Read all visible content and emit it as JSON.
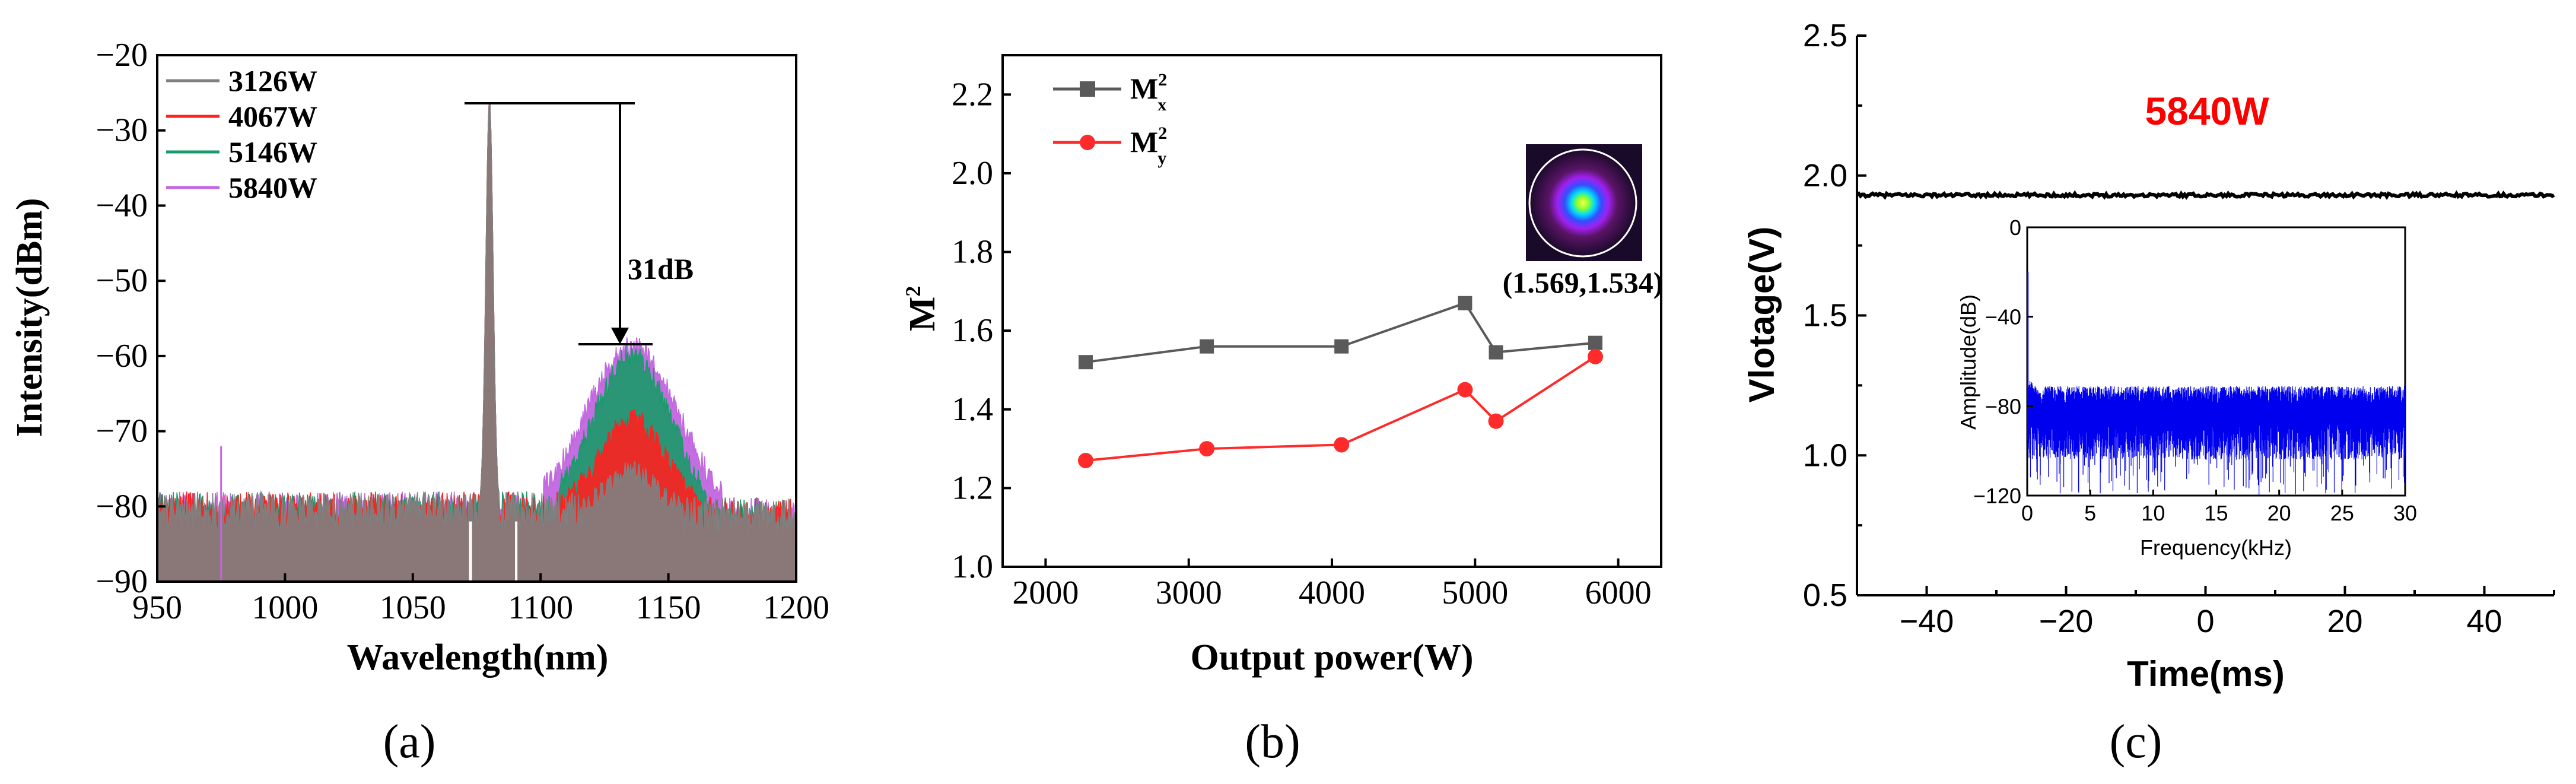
{
  "chart_data": [
    {
      "type": "line",
      "panel": "a",
      "caption": "(a)",
      "title": "",
      "xlabel": "Wavelength(nm)",
      "ylabel": "Intensity(dBm)",
      "xlim": [
        950,
        1200
      ],
      "ylim": [
        -90,
        -20
      ],
      "xticks": [
        "950",
        "1000",
        "1050",
        "1100",
        "1150",
        "1200"
      ],
      "yticks": [
        "−90",
        "−80",
        "−70",
        "−60",
        "−50",
        "−40",
        "−30",
        "−20"
      ],
      "legend_position": "top-left",
      "series": [
        {
          "name": "3126W",
          "color": "#808080",
          "noise_floor": -80.5,
          "raman_peak_nm": 1136,
          "raman_peak_dbm": -75,
          "signal_peak_nm": 1080,
          "signal_peak_dbm": -26
        },
        {
          "name": "4067W",
          "color": "#ff2020",
          "noise_floor": -80.5,
          "raman_peak_nm": 1136,
          "raman_peak_dbm": -68,
          "signal_peak_nm": 1080,
          "signal_peak_dbm": -26
        },
        {
          "name": "5146W",
          "color": "#1a9a6a",
          "noise_floor": -80.5,
          "raman_peak_nm": 1136,
          "raman_peak_dbm": -59.5,
          "signal_peak_nm": 1080,
          "signal_peak_dbm": -26
        },
        {
          "name": "5840W",
          "color": "#c266e0",
          "noise_floor": -80.5,
          "raman_peak_nm": 1136,
          "raman_peak_dbm": -58.5,
          "signal_peak_nm": 1080,
          "signal_peak_dbm": -26
        }
      ],
      "annotations": [
        {
          "text": "31dB",
          "from_dbm": -26,
          "to_dbm": -58,
          "at_nm": 1140
        }
      ]
    },
    {
      "type": "line",
      "panel": "b",
      "caption": "(b)",
      "title": "",
      "xlabel": "Output  power(W)",
      "ylabel": "M",
      "ylabel_sup": "2",
      "xlim": [
        1700,
        6300
      ],
      "ylim": [
        1.0,
        2.3
      ],
      "xticks": [
        "2000",
        "3000",
        "4000",
        "5000",
        "6000"
      ],
      "yticks": [
        "1.0",
        "1.2",
        "1.4",
        "1.6",
        "1.8",
        "2.0",
        "2.2"
      ],
      "legend_position": "top-left",
      "x": [
        2280,
        3126,
        4067,
        4930,
        5146,
        5840
      ],
      "series": [
        {
          "name": "M",
          "sup": "2",
          "sub": "x",
          "color": "#5a5a5a",
          "marker": "square",
          "values": [
            1.52,
            1.56,
            1.56,
            1.67,
            1.545,
            1.569
          ]
        },
        {
          "name": "M",
          "sup": "2",
          "sub": "y",
          "color": "#ff2a2a",
          "marker": "circle",
          "values": [
            1.27,
            1.3,
            1.31,
            1.45,
            1.37,
            1.534
          ]
        }
      ],
      "annotations": [
        {
          "text": "(1.569,1.534)"
        }
      ]
    },
    {
      "type": "line",
      "panel": "c",
      "caption": "(c)",
      "title": "",
      "xlabel": "Time(ms)",
      "ylabel": "Vlotage(V)",
      "xlim": [
        -50,
        50
      ],
      "ylim": [
        0.5,
        2.5
      ],
      "xticks": [
        "−40",
        "−20",
        "0",
        "20",
        "40"
      ],
      "yticks": [
        "0.5",
        "1.0",
        "1.5",
        "2.0",
        "2.5"
      ],
      "series": [
        {
          "name": "voltage",
          "color": "#000000",
          "level": 1.93
        }
      ],
      "annotations": [
        {
          "text": "5840W",
          "color": "#ff0000"
        }
      ],
      "inset": {
        "type": "line",
        "xlabel": "Frequency(kHz)",
        "ylabel": "Amplitude(dB)",
        "xlim": [
          0,
          30
        ],
        "ylim": [
          -120,
          0
        ],
        "xticks": [
          "0",
          "5",
          "10",
          "15",
          "20",
          "25",
          "30"
        ],
        "yticks": [
          "0",
          "−40",
          "−80",
          "−120"
        ],
        "series": [
          {
            "name": "spectrum",
            "color": "#0000ee",
            "floor": -80,
            "start_peak": -20
          }
        ]
      }
    }
  ]
}
